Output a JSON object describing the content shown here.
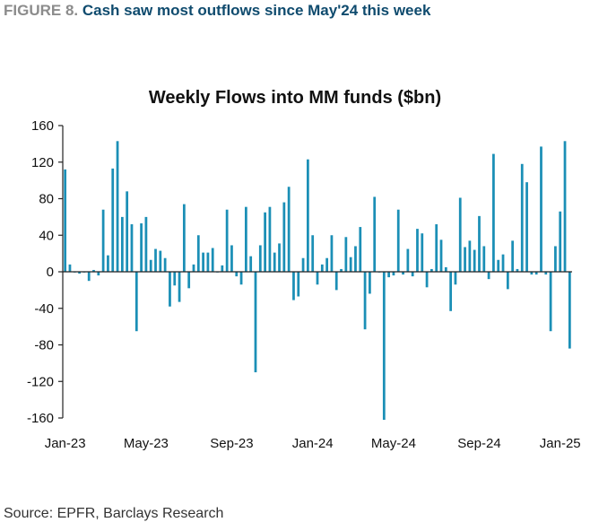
{
  "figure": {
    "label": "FIGURE 8.",
    "title": "Cash saw most outflows since May'24 this week"
  },
  "source": "Source: EPFR, Barclays Research",
  "colors": {
    "bar": "#1b8fb6",
    "title": "#0f4b6e",
    "label": "#8c8c8c"
  },
  "chart_data": {
    "type": "bar",
    "title": "Weekly Flows into MM funds ($bn)",
    "xlabel": "",
    "ylabel": "",
    "ylim": [
      -160,
      160
    ],
    "yticks": [
      -160,
      -120,
      -80,
      -40,
      0,
      40,
      80,
      120,
      160
    ],
    "xtick_labels": [
      "Jan-23",
      "May-23",
      "Sep-23",
      "Jan-24",
      "May-24",
      "Sep-24",
      "Jan-25"
    ],
    "xtick_index": [
      0,
      17,
      35,
      52,
      69,
      87,
      104
    ],
    "grid": false,
    "legend": "none",
    "values": [
      112,
      8,
      0,
      -2,
      0,
      -10,
      2,
      -4,
      68,
      18,
      113,
      143,
      60,
      88,
      52,
      -65,
      53,
      60,
      13,
      25,
      23,
      15,
      -38,
      -15,
      -33,
      74,
      -18,
      8,
      40,
      21,
      21,
      26,
      0,
      7,
      68,
      29,
      -5,
      -14,
      71,
      17,
      -110,
      29,
      65,
      71,
      21,
      31,
      76,
      93,
      -31,
      -27,
      15,
      123,
      40,
      -14,
      8,
      15,
      40,
      -20,
      3,
      38,
      16,
      28,
      49,
      -63,
      -24,
      82,
      0,
      -162,
      -6,
      -4,
      68,
      -3,
      25,
      -5,
      47,
      42,
      -17,
      3,
      52,
      35,
      5,
      -43,
      -14,
      81,
      27,
      34,
      24,
      61,
      28,
      -8,
      129,
      13,
      19,
      -19,
      34,
      3,
      118,
      98,
      -3,
      -3,
      137,
      -3,
      -65,
      28,
      66,
      143,
      -84
    ]
  }
}
